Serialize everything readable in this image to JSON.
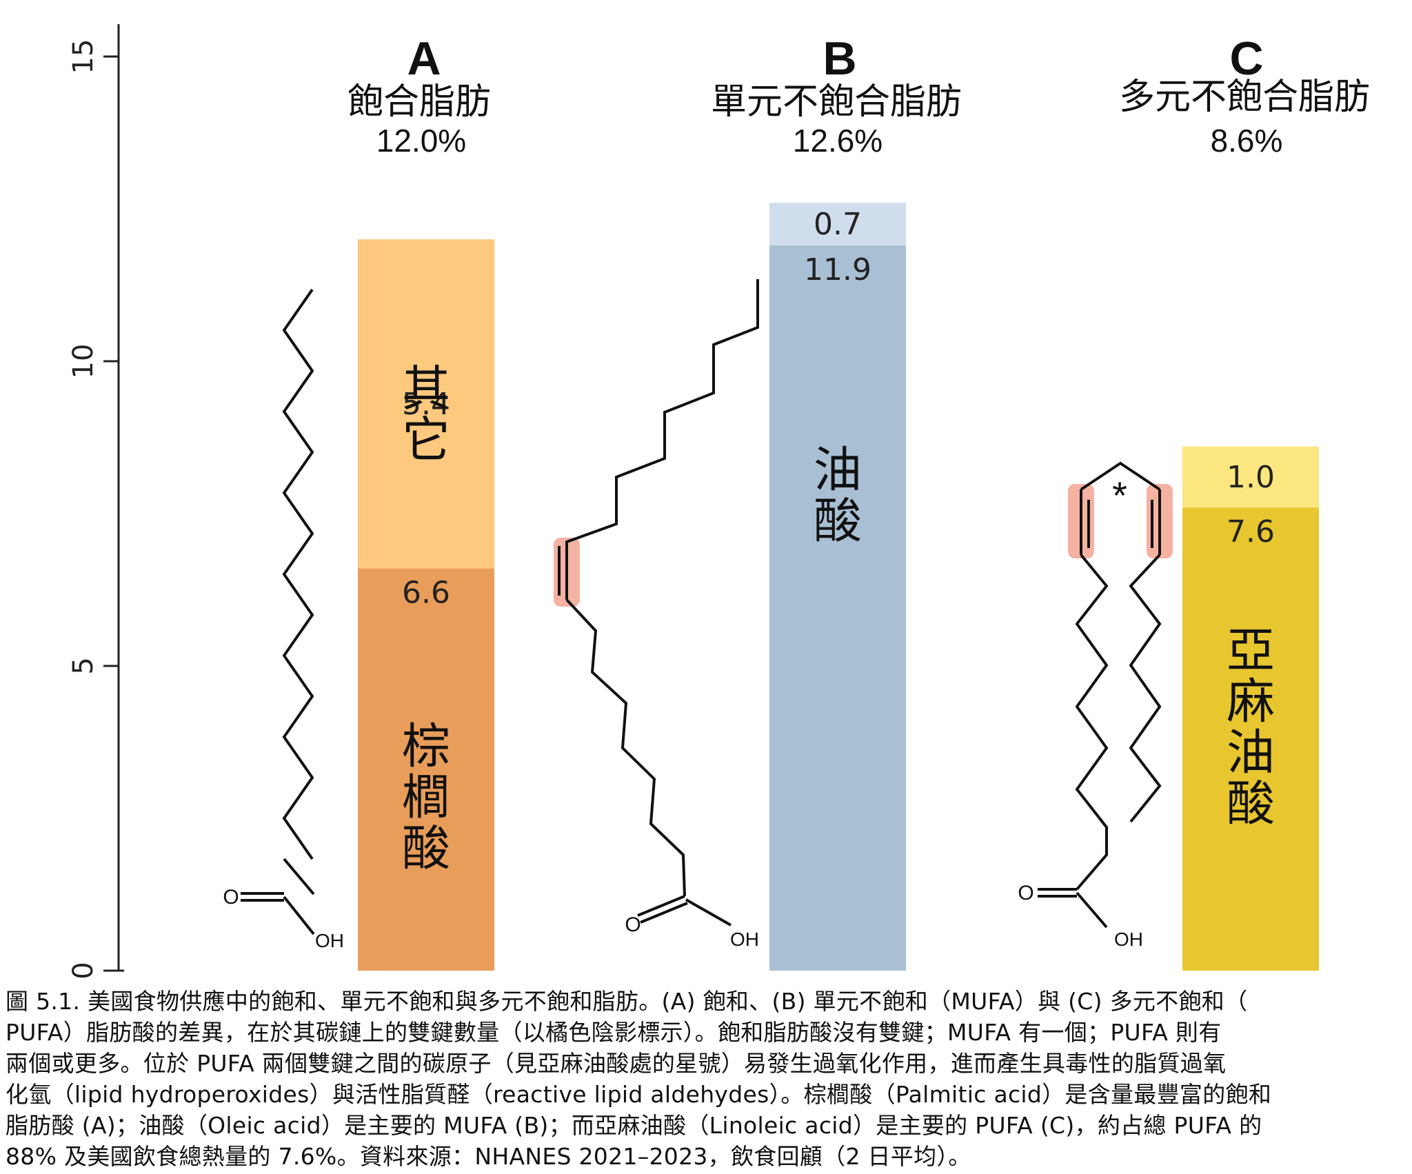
{
  "chart_data": {
    "type": "bar",
    "ylim": [
      0,
      16
    ],
    "yticks": [
      "0",
      "5",
      "10",
      "15"
    ],
    "colors": {
      "A_bottom": "#E99D5A",
      "A_top": "#FDC97F",
      "B_bottom": "#A9BFD4",
      "B_top": "#D0DDED",
      "C_bottom": "#E8C62F",
      "C_top": "#FCE67F",
      "highlight": "#F4B2A2"
    },
    "groups": [
      {
        "letter": "A",
        "name": "飽合脂肪",
        "total_label": "12.0%",
        "bottom": {
          "value": 6.6,
          "label": "6.6",
          "name": "棕櫚酸"
        },
        "top": {
          "value": 5.4,
          "label": "5.4",
          "name": "其它"
        }
      },
      {
        "letter": "B",
        "name": "單元不飽合脂肪",
        "total_label": "12.6%",
        "bottom": {
          "value": 11.9,
          "label": "11.9",
          "name": "油酸"
        },
        "top": {
          "value": 0.7,
          "label": "0.7",
          "name": ""
        }
      },
      {
        "letter": "C",
        "name": "多元不飽合脂肪",
        "total_label": "8.6%",
        "bottom": {
          "value": 7.6,
          "label": "7.6",
          "name": "亞麻油酸"
        },
        "top": {
          "value": 1.0,
          "label": "1.0",
          "name": ""
        }
      }
    ]
  },
  "molecule_labels": {
    "oxygen": "O",
    "hydroxyl": "OH",
    "star": "*"
  },
  "caption": [
    "圖 5.1. 美國食物供應中的飽和、單元不飽和與多元不飽和脂肪。(A) 飽和、(B) 單元不飽和（MUFA）與 (C) 多元不飽和（",
    "PUFA）脂肪酸的差異，在於其碳鏈上的雙鍵數量（以橘色陰影標示）。飽和脂肪酸沒有雙鍵；MUFA 有一個；PUFA 則有",
    "兩個或更多。位於 PUFA 兩個雙鍵之間的碳原子（見亞麻油酸處的星號）易發生過氧化作用，進而產生具毒性的脂質過氧",
    "化氫（lipid hydroperoxides）與活性脂質醛（reactive lipid aldehydes）。棕櫚酸（Palmitic acid）是含量最豐富的飽和",
    "脂肪酸 (A)；油酸（Oleic acid）是主要的 MUFA (B)；而亞麻油酸（Linoleic acid）是主要的 PUFA (C)，約占總 PUFA 的",
    "88% 及美國飲食總熱量的 7.6%。資料來源：NHANES 2021–2023，飲食回顧（2 日平均）。"
  ]
}
